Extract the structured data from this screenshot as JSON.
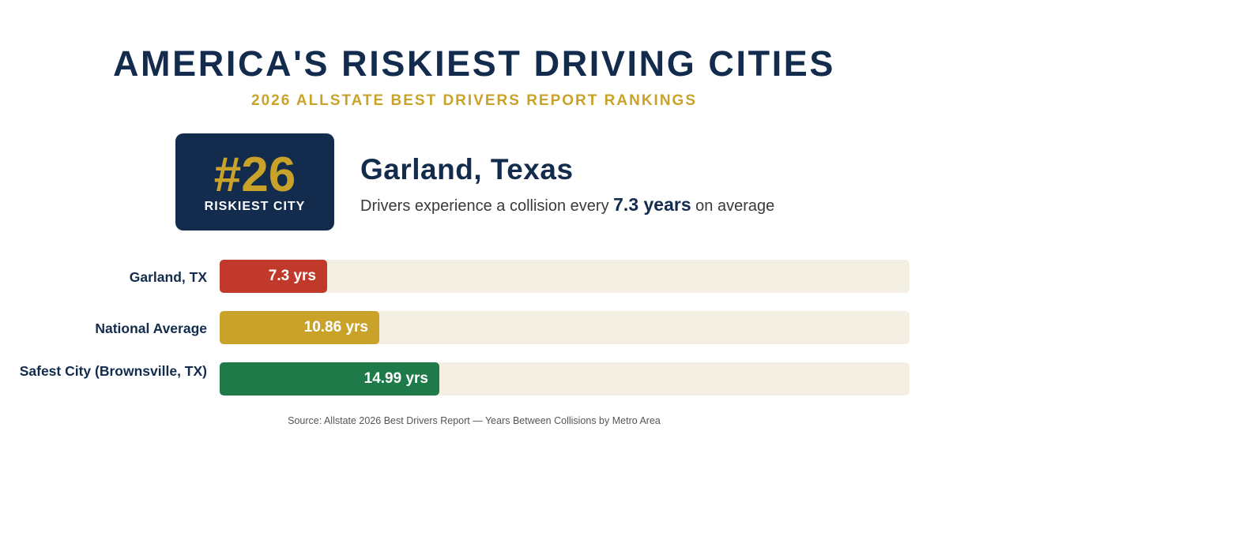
{
  "header": {
    "title": "AMERICA'S RISKIEST DRIVING CITIES",
    "subtitle": "2026 ALLSTATE BEST DRIVERS REPORT RANKINGS"
  },
  "rank_card": {
    "number": "#26",
    "label": "RISKIEST CITY"
  },
  "city": {
    "name": "Garland, Texas",
    "desc_prefix": "Drivers experience a collision every ",
    "desc_highlight": "7.3 years",
    "desc_suffix": " on average"
  },
  "colors": {
    "navy": "#132b4d",
    "gold": "#c9a22a",
    "red": "#c0392b",
    "green": "#1f7a4a",
    "track": "#f3efe3"
  },
  "chart_data": {
    "type": "bar",
    "orientation": "horizontal",
    "categories": [
      "Garland, TX",
      "National Average",
      "Safest City (Brownsville, TX)"
    ],
    "values": [
      7.3,
      10.86,
      14.99
    ],
    "value_labels": [
      "7.3 yrs",
      "10.86 yrs",
      "14.99 yrs"
    ],
    "bar_colors": [
      "#c0392b",
      "#c9a22a",
      "#1f7a4a"
    ],
    "xlim": [
      0,
      47
    ],
    "grid": false,
    "legend": "none"
  },
  "source": "Source: Allstate 2026 Best Drivers Report — Years Between Collisions by Metro Area"
}
